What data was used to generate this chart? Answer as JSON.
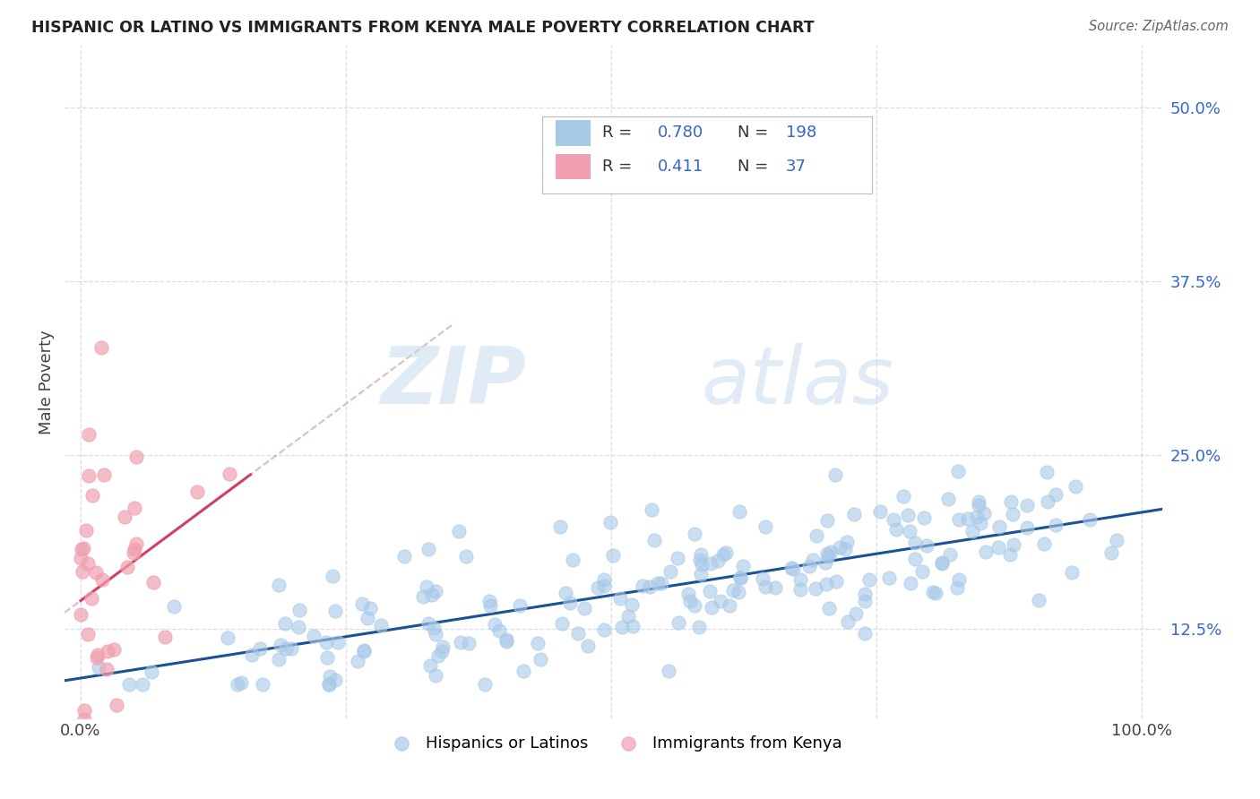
{
  "title": "HISPANIC OR LATINO VS IMMIGRANTS FROM KENYA MALE POVERTY CORRELATION CHART",
  "source": "Source: ZipAtlas.com",
  "ylabel": "Male Poverty",
  "yticks": [
    "12.5%",
    "25.0%",
    "37.5%",
    "50.0%"
  ],
  "ytick_values": [
    0.125,
    0.25,
    0.375,
    0.5
  ],
  "ylim": [
    0.06,
    0.545
  ],
  "xlim": [
    -0.015,
    1.02
  ],
  "blue_scatter_color": "#a8c8e8",
  "pink_scatter_color": "#f0a0b0",
  "blue_line_color": "#1a5296",
  "pink_line_color": "#d04060",
  "pink_dash_color": "#d0a0b0",
  "grid_color": "#d8dde8",
  "tick_color": "#3366cc",
  "R_blue": 0.78,
  "N_blue": 198,
  "R_pink": 0.411,
  "N_pink": 37,
  "watermark_zip": "ZIP",
  "watermark_atlas": "atlas",
  "legend_label_blue": "Hispanics or Latinos",
  "legend_label_pink": "Immigrants from Kenya",
  "blue_seed": 12,
  "pink_seed": 99
}
